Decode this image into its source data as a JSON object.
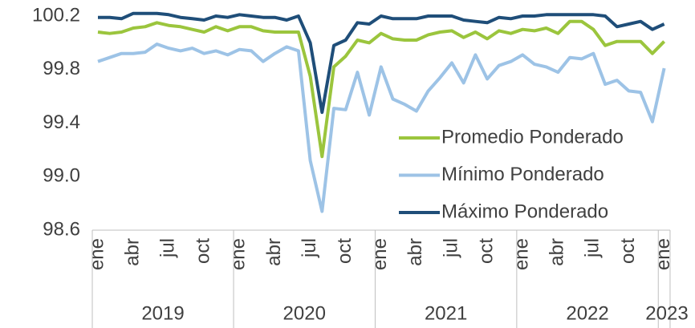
{
  "chart_data": {
    "type": "line",
    "categories": [
      "ene",
      null,
      null,
      "abr",
      null,
      null,
      "jul",
      null,
      null,
      "oct",
      null,
      null,
      "ene",
      null,
      null,
      "abr",
      null,
      null,
      "jul",
      null,
      null,
      "oct",
      null,
      null,
      "ene",
      null,
      null,
      "abr",
      null,
      null,
      "jul",
      null,
      null,
      "oct",
      null,
      null,
      "ene",
      null,
      null,
      "abr",
      null,
      null,
      "jul",
      null,
      null,
      "oct",
      null,
      null,
      "ene"
    ],
    "year_labels": [
      "2019",
      "2020",
      "2021",
      "2022",
      "2023"
    ],
    "ylim": [
      98.6,
      100.2
    ],
    "yticks": [
      98.6,
      {
        "value": 99.0,
        "label": "99.0"
      },
      99.4,
      99.8,
      100.2
    ],
    "grid": false,
    "legend": "lower right",
    "series": [
      {
        "name": "Promedio Ponderado",
        "color": "#9bc53d",
        "values": [
          100.08,
          100.07,
          100.08,
          100.11,
          100.12,
          100.15,
          100.13,
          100.12,
          100.1,
          100.08,
          100.12,
          100.09,
          100.12,
          100.12,
          100.09,
          100.08,
          100.08,
          100.08,
          99.75,
          99.15,
          99.82,
          99.9,
          100.02,
          100.0,
          100.07,
          100.03,
          100.02,
          100.02,
          100.06,
          100.08,
          100.09,
          100.04,
          100.08,
          100.03,
          100.09,
          100.07,
          100.1,
          100.09,
          100.11,
          100.07,
          100.16,
          100.16,
          100.1,
          99.98,
          100.01,
          100.01,
          100.01,
          99.92,
          100.01
        ]
      },
      {
        "name": "Mínimo Ponderado",
        "color": "#9dc3e6",
        "values": [
          99.86,
          99.89,
          99.92,
          99.92,
          99.93,
          99.99,
          99.96,
          99.94,
          99.96,
          99.92,
          99.94,
          99.91,
          99.95,
          99.94,
          99.86,
          99.92,
          99.97,
          99.94,
          99.12,
          98.74,
          99.51,
          99.5,
          99.78,
          99.46,
          99.82,
          99.58,
          99.54,
          99.49,
          99.64,
          99.74,
          99.85,
          99.7,
          99.91,
          99.73,
          99.83,
          99.86,
          99.91,
          99.84,
          99.82,
          99.78,
          99.89,
          99.88,
          99.92,
          99.69,
          99.72,
          99.64,
          99.63,
          99.41,
          99.81
        ]
      },
      {
        "name": "Máximo Ponderado",
        "color": "#1f4e79",
        "values": [
          100.19,
          100.19,
          100.18,
          100.22,
          100.22,
          100.22,
          100.21,
          100.19,
          100.18,
          100.17,
          100.2,
          100.19,
          100.21,
          100.2,
          100.19,
          100.19,
          100.17,
          100.2,
          100.0,
          99.48,
          99.98,
          100.02,
          100.15,
          100.14,
          100.2,
          100.18,
          100.18,
          100.18,
          100.2,
          100.2,
          100.2,
          100.17,
          100.16,
          100.15,
          100.19,
          100.18,
          100.2,
          100.2,
          100.21,
          100.21,
          100.21,
          100.21,
          100.21,
          100.2,
          100.12,
          100.14,
          100.16,
          100.1,
          100.14
        ]
      }
    ]
  }
}
